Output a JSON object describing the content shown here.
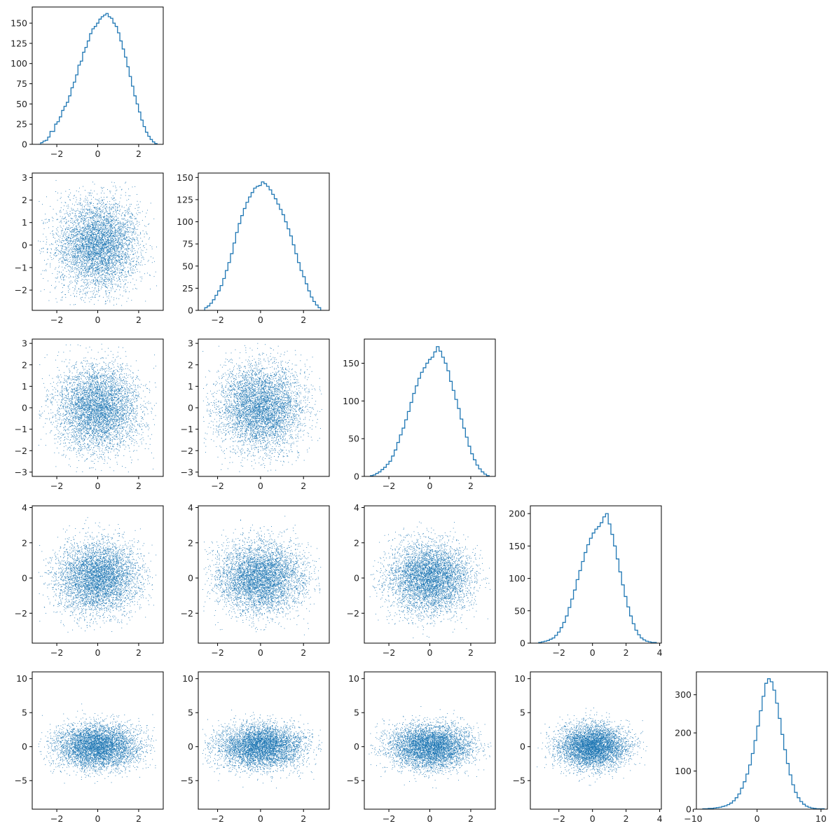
{
  "figure": {
    "type": "corner-plot",
    "n_variables": 5
  },
  "colors": {
    "accent": "#1f77b4",
    "axes": "#000000",
    "background": "#ffffff"
  },
  "chart_data": [
    {
      "id": "hist-0",
      "type": "histogram",
      "row": 0,
      "col": 0,
      "xlim": [
        -3.2,
        3.2
      ],
      "ylim": [
        0,
        170
      ],
      "xticks": [
        -2,
        0,
        2
      ],
      "yticks": [
        0,
        25,
        50,
        75,
        100,
        125,
        150
      ],
      "bins_start": -2.9,
      "bins_end": 2.9,
      "counts": [
        0,
        2,
        4,
        5,
        9,
        16,
        16,
        25,
        28,
        34,
        42,
        47,
        52,
        60,
        70,
        77,
        86,
        98,
        103,
        114,
        120,
        128,
        137,
        143,
        146,
        150,
        155,
        158,
        160,
        162,
        158,
        156,
        150,
        146,
        138,
        128,
        118,
        108,
        96,
        84,
        72,
        60,
        50,
        40,
        30,
        22,
        15,
        10,
        6,
        3,
        1
      ]
    },
    {
      "id": "hist-1",
      "type": "histogram",
      "row": 1,
      "col": 1,
      "xlim": [
        -2.9,
        3.2
      ],
      "ylim": [
        0,
        155
      ],
      "xticks": [
        -2,
        0,
        2
      ],
      "yticks": [
        0,
        25,
        50,
        75,
        100,
        125,
        150
      ],
      "bins_start": -2.6,
      "bins_end": 2.8,
      "counts": [
        3,
        5,
        8,
        12,
        17,
        22,
        28,
        36,
        45,
        54,
        64,
        76,
        88,
        98,
        107,
        115,
        122,
        128,
        133,
        138,
        140,
        141,
        145,
        143,
        140,
        136,
        131,
        126,
        120,
        114,
        108,
        100,
        92,
        84,
        74,
        64,
        54,
        45,
        38,
        30,
        22,
        15,
        10,
        6,
        3
      ]
    },
    {
      "id": "hist-2",
      "type": "histogram",
      "row": 2,
      "col": 2,
      "xlim": [
        -3.2,
        3.2
      ],
      "ylim": [
        0,
        182
      ],
      "xticks": [
        -2,
        0,
        2
      ],
      "yticks": [
        0,
        50,
        100,
        150
      ],
      "bins_start": -2.9,
      "bins_end": 2.9,
      "counts": [
        1,
        2,
        4,
        6,
        9,
        12,
        16,
        20,
        27,
        35,
        45,
        55,
        64,
        75,
        86,
        98,
        110,
        120,
        130,
        138,
        144,
        150,
        155,
        158,
        165,
        172,
        166,
        158,
        150,
        140,
        126,
        114,
        102,
        90,
        76,
        64,
        52,
        40,
        30,
        22,
        15,
        10,
        6,
        3,
        1
      ]
    },
    {
      "id": "hist-3",
      "type": "histogram",
      "row": 3,
      "col": 3,
      "xlim": [
        -3.7,
        4.1
      ],
      "ylim": [
        0,
        212
      ],
      "xticks": [
        -2,
        0,
        2,
        4
      ],
      "yticks": [
        0,
        50,
        100,
        150,
        200
      ],
      "bins_start": -3.2,
      "bins_end": 3.8,
      "counts": [
        1,
        2,
        3,
        4,
        6,
        8,
        12,
        17,
        24,
        32,
        42,
        55,
        68,
        82,
        98,
        112,
        126,
        140,
        152,
        162,
        170,
        176,
        180,
        186,
        195,
        200,
        184,
        168,
        150,
        130,
        110,
        90,
        72,
        56,
        42,
        30,
        20,
        13,
        8,
        5,
        3,
        2,
        1,
        1
      ]
    },
    {
      "id": "hist-4",
      "type": "histogram",
      "row": 4,
      "col": 4,
      "xlim": [
        -9.5,
        11
      ],
      "ylim": [
        0,
        360
      ],
      "xticks": [
        -10,
        0,
        10
      ],
      "yticks": [
        0,
        100,
        200,
        300
      ],
      "bins_start": -8.5,
      "bins_end": 10.5,
      "counts": [
        1,
        1,
        2,
        2,
        3,
        4,
        5,
        7,
        9,
        12,
        16,
        22,
        30,
        40,
        55,
        72,
        92,
        116,
        146,
        180,
        218,
        258,
        296,
        330,
        342,
        334,
        312,
        278,
        238,
        196,
        156,
        120,
        90,
        64,
        44,
        30,
        20,
        13,
        8,
        5,
        3,
        2,
        1,
        1,
        1
      ]
    },
    {
      "id": "scatter-1-0",
      "type": "scatter",
      "row": 1,
      "col": 0,
      "xlim": [
        -3.2,
        3.2
      ],
      "ylim": [
        -2.9,
        3.2
      ],
      "xticks": [
        -2,
        0,
        2
      ],
      "yticks": [
        -2,
        -1,
        0,
        1,
        2,
        3
      ],
      "n_points": 5000,
      "x_dist": {
        "mean": 0,
        "sd": 1,
        "clip": [
          -2.9,
          2.9
        ]
      },
      "y_dist": {
        "mean": 0,
        "sd": 1,
        "clip": [
          -2.7,
          2.9
        ]
      }
    },
    {
      "id": "scatter-2-0",
      "type": "scatter",
      "row": 2,
      "col": 0,
      "xlim": [
        -3.2,
        3.2
      ],
      "ylim": [
        -3.2,
        3.2
      ],
      "xticks": [
        -2,
        0,
        2
      ],
      "yticks": [
        -3,
        -2,
        -1,
        0,
        1,
        2,
        3
      ],
      "n_points": 5000,
      "x_dist": {
        "mean": 0,
        "sd": 1,
        "clip": [
          -2.9,
          2.9
        ]
      },
      "y_dist": {
        "mean": 0,
        "sd": 1,
        "clip": [
          -3.0,
          3.0
        ]
      }
    },
    {
      "id": "scatter-2-1",
      "type": "scatter",
      "row": 2,
      "col": 1,
      "xlim": [
        -2.9,
        3.2
      ],
      "ylim": [
        -3.2,
        3.2
      ],
      "xticks": [
        -2,
        0,
        2
      ],
      "yticks": [
        -3,
        -2,
        -1,
        0,
        1,
        2,
        3
      ],
      "n_points": 5000,
      "x_dist": {
        "mean": 0,
        "sd": 1,
        "clip": [
          -2.7,
          2.9
        ]
      },
      "y_dist": {
        "mean": 0,
        "sd": 1,
        "clip": [
          -3.0,
          3.0
        ]
      }
    },
    {
      "id": "scatter-3-0",
      "type": "scatter",
      "row": 3,
      "col": 0,
      "xlim": [
        -3.2,
        3.2
      ],
      "ylim": [
        -3.7,
        4.1
      ],
      "xticks": [
        -2,
        0,
        2
      ],
      "yticks": [
        -2,
        0,
        2,
        4
      ],
      "n_points": 5000,
      "x_dist": {
        "mean": 0,
        "sd": 1,
        "clip": [
          -2.9,
          2.9
        ]
      },
      "y_dist": {
        "mean": 0,
        "sd": 1,
        "clip": [
          -3.4,
          3.8
        ]
      }
    },
    {
      "id": "scatter-3-1",
      "type": "scatter",
      "row": 3,
      "col": 1,
      "xlim": [
        -2.9,
        3.2
      ],
      "ylim": [
        -3.7,
        4.1
      ],
      "xticks": [
        -2,
        0,
        2
      ],
      "yticks": [
        -2,
        0,
        2,
        4
      ],
      "n_points": 5000,
      "x_dist": {
        "mean": 0,
        "sd": 1,
        "clip": [
          -2.7,
          2.9
        ]
      },
      "y_dist": {
        "mean": 0,
        "sd": 1,
        "clip": [
          -3.4,
          3.8
        ]
      }
    },
    {
      "id": "scatter-3-2",
      "type": "scatter",
      "row": 3,
      "col": 2,
      "xlim": [
        -3.2,
        3.2
      ],
      "ylim": [
        -3.7,
        4.1
      ],
      "xticks": [
        -2,
        0,
        2
      ],
      "yticks": [
        -2,
        0,
        2,
        4
      ],
      "n_points": 5000,
      "x_dist": {
        "mean": 0,
        "sd": 1,
        "clip": [
          -3.0,
          3.0
        ]
      },
      "y_dist": {
        "mean": 0,
        "sd": 1,
        "clip": [
          -3.4,
          3.8
        ]
      }
    },
    {
      "id": "scatter-4-0",
      "type": "scatter",
      "row": 4,
      "col": 0,
      "xlim": [
        -3.2,
        3.2
      ],
      "ylim": [
        -9.2,
        11
      ],
      "xticks": [
        -2,
        0,
        2
      ],
      "yticks": [
        -5,
        0,
        5,
        10
      ],
      "n_points": 5000,
      "x_dist": {
        "mean": 0,
        "sd": 1,
        "clip": [
          -2.9,
          2.9
        ]
      },
      "y_dist": {
        "mean": 0,
        "sd": 1.6,
        "clip": [
          -8.5,
          10.3
        ]
      }
    },
    {
      "id": "scatter-4-1",
      "type": "scatter",
      "row": 4,
      "col": 1,
      "xlim": [
        -2.9,
        3.2
      ],
      "ylim": [
        -9.2,
        11
      ],
      "xticks": [
        -2,
        0,
        2
      ],
      "yticks": [
        -5,
        0,
        5,
        10
      ],
      "n_points": 5000,
      "x_dist": {
        "mean": 0,
        "sd": 1,
        "clip": [
          -2.7,
          2.9
        ]
      },
      "y_dist": {
        "mean": 0,
        "sd": 1.6,
        "clip": [
          -8.5,
          10.3
        ]
      }
    },
    {
      "id": "scatter-4-2",
      "type": "scatter",
      "row": 4,
      "col": 2,
      "xlim": [
        -3.2,
        3.2
      ],
      "ylim": [
        -9.2,
        11
      ],
      "xticks": [
        -2,
        0,
        2
      ],
      "yticks": [
        -5,
        0,
        5,
        10
      ],
      "n_points": 5000,
      "x_dist": {
        "mean": 0,
        "sd": 1,
        "clip": [
          -3.0,
          3.0
        ]
      },
      "y_dist": {
        "mean": 0,
        "sd": 1.6,
        "clip": [
          -8.5,
          10.3
        ]
      }
    },
    {
      "id": "scatter-4-3",
      "type": "scatter",
      "row": 4,
      "col": 3,
      "xlim": [
        -3.7,
        4.1
      ],
      "ylim": [
        -9.2,
        11
      ],
      "xticks": [
        -2,
        0,
        2,
        4
      ],
      "yticks": [
        -5,
        0,
        5,
        10
      ],
      "n_points": 5000,
      "x_dist": {
        "mean": 0,
        "sd": 1,
        "clip": [
          -3.4,
          3.8
        ]
      },
      "y_dist": {
        "mean": 0,
        "sd": 1.6,
        "clip": [
          -8.5,
          10.3
        ]
      }
    }
  ]
}
